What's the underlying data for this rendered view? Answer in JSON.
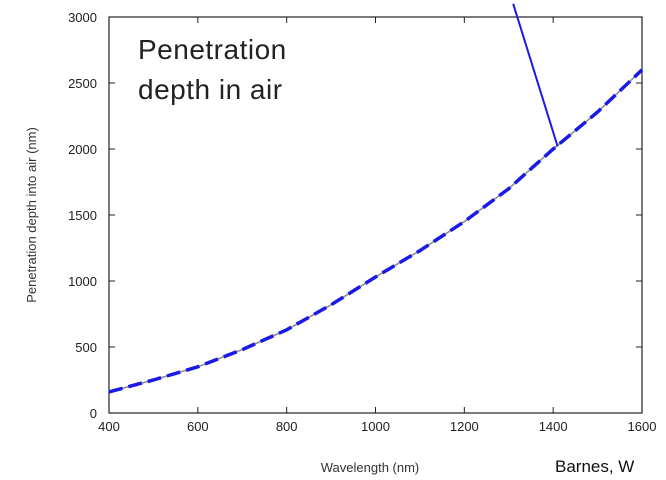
{
  "chart_data": {
    "type": "line",
    "title": "",
    "xlabel": "Wavelength (nm)",
    "ylabel": "Penetration depth into air (nm)",
    "xlim": [
      400,
      1600
    ],
    "ylim": [
      0,
      3000
    ],
    "xticks": [
      400,
      600,
      800,
      1000,
      1200,
      1400,
      1600
    ],
    "yticks": [
      0,
      500,
      1000,
      1500,
      2000,
      2500,
      3000
    ],
    "x_tick_labels": [
      "400",
      "600",
      "800",
      "1000",
      "1200",
      "1400",
      "1600"
    ],
    "y_tick_labels": [
      "0",
      "500",
      "1000",
      "1500",
      "2000",
      "2500",
      "3000"
    ],
    "grid": false,
    "series": [
      {
        "color": "#1a1ae6",
        "style": "dashed",
        "x": [
          400,
          500,
          600,
          700,
          800,
          900,
          1000,
          1100,
          1200,
          1300,
          1400,
          1500,
          1600
        ],
        "y": [
          160,
          250,
          350,
          480,
          630,
          820,
          1030,
          1230,
          1450,
          1700,
          2000,
          2280,
          2600
        ]
      }
    ],
    "annotations": [
      {
        "text_lines": [
          "Penetration",
          "depth in air"
        ]
      }
    ],
    "pointer_line": {
      "from": [
        1310,
        3100
      ],
      "to": [
        1410,
        2020
      ]
    },
    "credit": "Barnes, W"
  }
}
